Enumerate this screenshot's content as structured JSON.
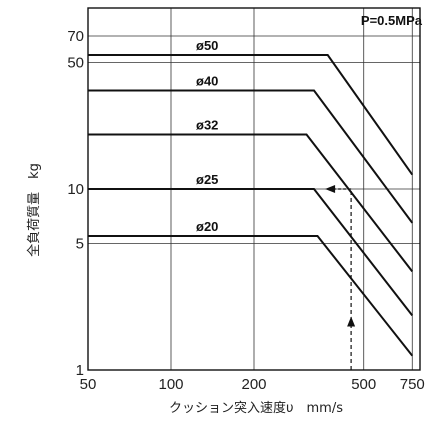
{
  "chart_data": {
    "type": "line",
    "x_scale": "log",
    "y_scale": "log",
    "xlim": [
      50,
      800
    ],
    "ylim": [
      1,
      100
    ],
    "grid": true,
    "xlabel": "クッション突入速度υ　mm/s",
    "ylabel": "全負荷質量　kg",
    "annotation": "P=0.5MPa",
    "x_ticks": [
      {
        "value": 50,
        "label": "50"
      },
      {
        "value": 100,
        "label": "100"
      },
      {
        "value": 200,
        "label": "200"
      },
      {
        "value": 500,
        "label": "500"
      },
      {
        "value": 750,
        "label": "750"
      }
    ],
    "y_ticks": [
      {
        "value": 1,
        "label": "1"
      },
      {
        "value": 5,
        "label": "5"
      },
      {
        "value": 10,
        "label": "10"
      },
      {
        "value": 50,
        "label": "50"
      },
      {
        "value": 70,
        "label": "70"
      }
    ],
    "series": [
      {
        "name": "ø50",
        "points": [
          [
            50,
            55
          ],
          [
            370,
            55
          ],
          [
            750,
            12
          ]
        ]
      },
      {
        "name": "ø40",
        "points": [
          [
            50,
            35
          ],
          [
            330,
            35
          ],
          [
            750,
            6.5
          ]
        ]
      },
      {
        "name": "ø32",
        "points": [
          [
            50,
            20
          ],
          [
            310,
            20
          ],
          [
            750,
            3.5
          ]
        ]
      },
      {
        "name": "ø25",
        "points": [
          [
            50,
            10
          ],
          [
            330,
            10
          ],
          [
            750,
            2
          ]
        ]
      },
      {
        "name": "ø20",
        "points": [
          [
            50,
            5.5
          ],
          [
            340,
            5.5
          ],
          [
            750,
            1.2
          ]
        ]
      }
    ],
    "example": {
      "x": 450,
      "y": 10
    }
  }
}
